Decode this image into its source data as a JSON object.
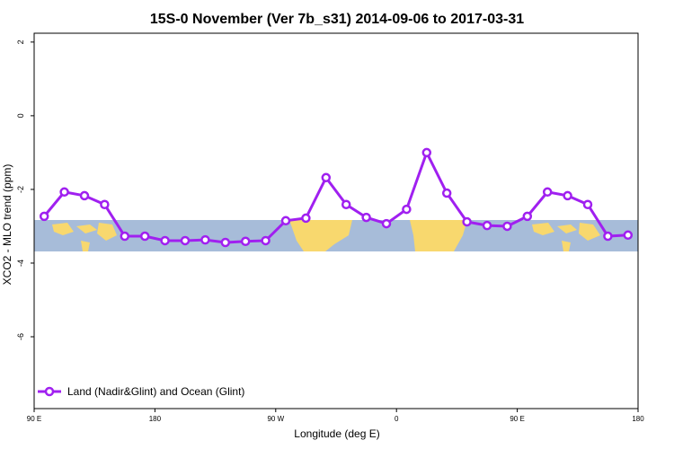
{
  "chart_data": {
    "type": "line",
    "title": "15S-0 November (Ver 7b_s31)   2014-09-06 to 2017-03-31",
    "x_label": "Longitude (deg E)",
    "y_label": "XCO2 - MLO trend (ppm)",
    "x": [
      97.5,
      112.5,
      127.5,
      142.5,
      157.5,
      172.5,
      187.5,
      202.5,
      217.5,
      232.5,
      247.5,
      262.5,
      277.5,
      292.5,
      307.5,
      322.5,
      337.5,
      352.5,
      367.5,
      382.5,
      397.5,
      412.5,
      427.5,
      442.5,
      457.5,
      472.5,
      487.5,
      502.5,
      517.5,
      532.5
    ],
    "series": [
      {
        "name": "Land (Nadir&Glint) and Ocean (Glint)",
        "color": "#a020f0",
        "values": [
          -2.73,
          -2.07,
          -2.17,
          -2.41,
          -3.27,
          -3.27,
          -3.39,
          -3.39,
          -3.37,
          -3.44,
          -3.41,
          -3.39,
          -2.85,
          -2.78,
          -1.68,
          -2.41,
          -2.76,
          -2.93,
          -2.54,
          -1.0,
          -2.1,
          -2.88,
          -2.98,
          -3.0,
          -2.73,
          -2.07,
          -2.17,
          -2.41,
          -3.27,
          -3.24
        ]
      }
    ],
    "xlim": [
      90,
      540
    ],
    "xticks": [
      {
        "value": 90,
        "label": "90 E"
      },
      180,
      {
        "value": 270,
        "label": "90 W"
      },
      {
        "value": 360,
        "label": "0"
      },
      {
        "value": 450,
        "label": "90 E"
      },
      {
        "value": 540,
        "label": "180"
      }
    ],
    "ylim": [
      -7.95,
      2.24
    ],
    "yticks": [
      2,
      0,
      -2,
      -4,
      -6
    ],
    "legend": "bottom-left"
  }
}
